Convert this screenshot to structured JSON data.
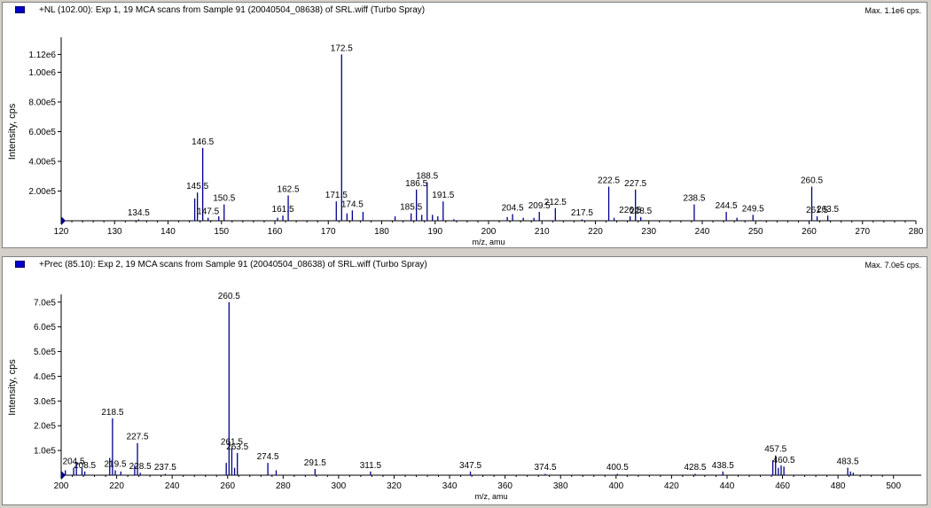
{
  "panels": [
    {
      "title": "+NL (102.00): Exp 1, 19 MCA scans from Sample 91 (20040504_08638) of SRL.wiff (Turbo Spray)",
      "max_label": "Max. 1.1e6 cps."
    },
    {
      "title": "+Prec (85.10): Exp 2, 19 MCA scans from Sample 91 (20040504_08638) of SRL.wiff (Turbo Spray)",
      "max_label": "Max. 7.0e5 cps."
    }
  ],
  "colors": {
    "bars": "#00008b",
    "axis": "#000000",
    "marker": "#0000cc"
  },
  "chart_data": [
    {
      "type": "bar",
      "xlabel": "m/z, amu",
      "ylabel": "Intensity, cps",
      "xlim": [
        120,
        280
      ],
      "ylim": [
        0,
        1200000
      ],
      "xticks": [
        120,
        130,
        140,
        150,
        160,
        170,
        180,
        190,
        200,
        210,
        220,
        230,
        240,
        250,
        260,
        270,
        280
      ],
      "yticks": [
        {
          "v": 200000,
          "label": "2.00e5"
        },
        {
          "v": 400000,
          "label": "4.00e5"
        },
        {
          "v": 600000,
          "label": "6.00e5"
        },
        {
          "v": 800000,
          "label": "8.00e5"
        },
        {
          "v": 1000000,
          "label": "1.00e6"
        },
        {
          "v": 1120000,
          "label": "1.12e6"
        }
      ],
      "peaks": [
        {
          "x": 134.5,
          "y": 3000,
          "label": "134.5"
        },
        {
          "x": 145.0,
          "y": 150000
        },
        {
          "x": 145.5,
          "y": 190000,
          "label": "145.5"
        },
        {
          "x": 146.5,
          "y": 490000,
          "label": "146.5"
        },
        {
          "x": 147.5,
          "y": 20000,
          "label": "147.5"
        },
        {
          "x": 149.5,
          "y": 30000
        },
        {
          "x": 150.5,
          "y": 110000,
          "label": "150.5"
        },
        {
          "x": 160.5,
          "y": 20000
        },
        {
          "x": 161.5,
          "y": 35000,
          "label": "161.5"
        },
        {
          "x": 162.5,
          "y": 170000,
          "label": "162.5"
        },
        {
          "x": 171.5,
          "y": 130000,
          "label": "171.5"
        },
        {
          "x": 172.5,
          "y": 1120000,
          "label": "172.5"
        },
        {
          "x": 173.5,
          "y": 50000
        },
        {
          "x": 174.5,
          "y": 70000,
          "label": "174.5"
        },
        {
          "x": 176.5,
          "y": 60000
        },
        {
          "x": 182.5,
          "y": 30000
        },
        {
          "x": 185.5,
          "y": 50000,
          "label": "185.5"
        },
        {
          "x": 186.5,
          "y": 210000,
          "label": "186.5"
        },
        {
          "x": 187.5,
          "y": 40000
        },
        {
          "x": 188.5,
          "y": 260000,
          "label": "188.5"
        },
        {
          "x": 189.5,
          "y": 40000
        },
        {
          "x": 190.5,
          "y": 30000
        },
        {
          "x": 191.5,
          "y": 130000,
          "label": "191.5"
        },
        {
          "x": 193.5,
          "y": 10000
        },
        {
          "x": 203.5,
          "y": 25000
        },
        {
          "x": 204.5,
          "y": 45000,
          "label": "204.5"
        },
        {
          "x": 206.5,
          "y": 20000
        },
        {
          "x": 208.5,
          "y": 20000
        },
        {
          "x": 209.5,
          "y": 60000,
          "label": "209.5"
        },
        {
          "x": 212.5,
          "y": 85000,
          "label": "212.5"
        },
        {
          "x": 217.5,
          "y": 5000,
          "label": "217.5"
        },
        {
          "x": 222.5,
          "y": 230000,
          "label": "222.5"
        },
        {
          "x": 223.5,
          "y": 20000
        },
        {
          "x": 226.5,
          "y": 30000,
          "label": "226.5"
        },
        {
          "x": 227.5,
          "y": 210000,
          "label": "227.5"
        },
        {
          "x": 228.5,
          "y": 25000,
          "label": "228.5"
        },
        {
          "x": 238.5,
          "y": 110000,
          "label": "238.5"
        },
        {
          "x": 244.5,
          "y": 60000,
          "label": "244.5"
        },
        {
          "x": 246.5,
          "y": 20000
        },
        {
          "x": 249.5,
          "y": 40000,
          "label": "249.5"
        },
        {
          "x": 260.5,
          "y": 230000,
          "label": "260.5"
        },
        {
          "x": 261.5,
          "y": 30000,
          "label": "261.5"
        },
        {
          "x": 263.5,
          "y": 35000,
          "label": "263.5"
        }
      ]
    },
    {
      "type": "bar",
      "xlabel": "m/z, amu",
      "ylabel": "Intensity, cps",
      "xlim": [
        200,
        510
      ],
      "ylim": [
        0,
        710000
      ],
      "xticks": [
        200,
        220,
        240,
        260,
        280,
        300,
        320,
        340,
        360,
        380,
        400,
        420,
        440,
        460,
        480,
        500
      ],
      "yticks": [
        {
          "v": 100000,
          "label": "1.0e5"
        },
        {
          "v": 200000,
          "label": "2.0e5"
        },
        {
          "v": 300000,
          "label": "3.0e5"
        },
        {
          "v": 400000,
          "label": "4.0e5"
        },
        {
          "v": 500000,
          "label": "5.0e5"
        },
        {
          "v": 600000,
          "label": "6.0e5"
        },
        {
          "v": 700000,
          "label": "7.0e5"
        }
      ],
      "peaks": [
        {
          "x": 201.5,
          "y": 20000
        },
        {
          "x": 204.5,
          "y": 30000,
          "label": "204.5"
        },
        {
          "x": 205.5,
          "y": 50000
        },
        {
          "x": 207.5,
          "y": 30000
        },
        {
          "x": 208.5,
          "y": 15000,
          "label": "208.5"
        },
        {
          "x": 217.5,
          "y": 70000
        },
        {
          "x": 218.5,
          "y": 230000,
          "label": "218.5"
        },
        {
          "x": 219.5,
          "y": 20000,
          "label": "219.5"
        },
        {
          "x": 221.5,
          "y": 15000
        },
        {
          "x": 226.5,
          "y": 40000
        },
        {
          "x": 227.5,
          "y": 130000,
          "label": "227.5"
        },
        {
          "x": 228.5,
          "y": 10000,
          "label": "228.5"
        },
        {
          "x": 237.5,
          "y": 5000,
          "label": "237.5"
        },
        {
          "x": 259.5,
          "y": 50000
        },
        {
          "x": 260.5,
          "y": 700000,
          "label": "260.5"
        },
        {
          "x": 261.5,
          "y": 110000,
          "label": "261.5"
        },
        {
          "x": 262.5,
          "y": 30000
        },
        {
          "x": 263.5,
          "y": 90000,
          "label": "263.5"
        },
        {
          "x": 274.5,
          "y": 50000,
          "label": "274.5"
        },
        {
          "x": 277.5,
          "y": 20000
        },
        {
          "x": 291.5,
          "y": 25000,
          "label": "291.5"
        },
        {
          "x": 311.5,
          "y": 15000,
          "label": "311.5"
        },
        {
          "x": 347.5,
          "y": 15000,
          "label": "347.5"
        },
        {
          "x": 374.5,
          "y": 5000,
          "label": "374.5"
        },
        {
          "x": 400.5,
          "y": 5000,
          "label": "400.5"
        },
        {
          "x": 428.5,
          "y": 5000,
          "label": "428.5"
        },
        {
          "x": 438.5,
          "y": 15000,
          "label": "438.5"
        },
        {
          "x": 456.5,
          "y": 60000
        },
        {
          "x": 457.5,
          "y": 80000,
          "label": "457.5"
        },
        {
          "x": 458.5,
          "y": 30000
        },
        {
          "x": 459.5,
          "y": 40000
        },
        {
          "x": 460.5,
          "y": 35000,
          "label": "460.5"
        },
        {
          "x": 483.5,
          "y": 30000,
          "label": "483.5"
        },
        {
          "x": 484.5,
          "y": 15000
        },
        {
          "x": 485.5,
          "y": 10000
        }
      ]
    }
  ]
}
